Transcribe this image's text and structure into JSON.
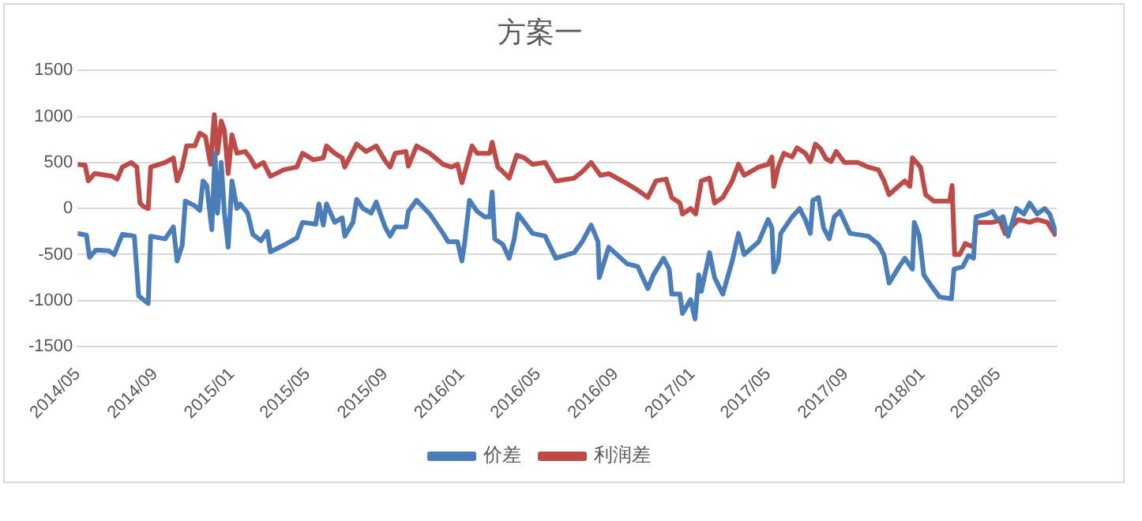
{
  "chart_data": {
    "type": "line",
    "title": "方案一",
    "legend": "bottom",
    "grid": "y",
    "marker": "none",
    "line_style": "solid",
    "xlim": [
      "2014-05-01",
      "2018-08-02"
    ],
    "xticks": [
      {
        "value": "2014-05-01",
        "label": "2014/05"
      },
      {
        "value": "2014-09-01",
        "label": "2014/09"
      },
      {
        "value": "2015-01-01",
        "label": "2015/01"
      },
      {
        "value": "2015-05-01",
        "label": "2015/05"
      },
      {
        "value": "2015-09-01",
        "label": "2015/09"
      },
      {
        "value": "2016-01-01",
        "label": "2016/01"
      },
      {
        "value": "2016-05-01",
        "label": "2016/05"
      },
      {
        "value": "2016-09-01",
        "label": "2016/09"
      },
      {
        "value": "2017-01-01",
        "label": "2017/01"
      },
      {
        "value": "2017-05-01",
        "label": "2017/05"
      },
      {
        "value": "2017-09-01",
        "label": "2017/09"
      },
      {
        "value": "2018-01-01",
        "label": "2018/01"
      },
      {
        "value": "2018-05-01",
        "label": "2018/05"
      }
    ],
    "ylim": [
      -1500,
      1500
    ],
    "yticks": [
      -1500,
      -1000,
      -500,
      0,
      500,
      1000,
      1500
    ],
    "series": [
      {
        "name": "价差",
        "color": "#4a7ebb",
        "x": [
          "2014-05-01",
          "2014-05-15",
          "2014-05-20",
          "2014-05-30",
          "2014-06-20",
          "2014-06-28",
          "2014-07-11",
          "2014-07-30",
          "2014-08-06",
          "2014-08-21",
          "2014-08-25",
          "2014-09-17",
          "2014-09-30",
          "2014-10-06",
          "2014-10-14",
          "2014-10-19",
          "2014-11-03",
          "2014-11-11",
          "2014-11-16",
          "2014-11-22",
          "2014-11-30",
          "2014-12-05",
          "2014-12-09",
          "2014-12-15",
          "2014-12-20",
          "2014-12-26",
          "2015-01-01",
          "2015-01-09",
          "2015-01-14",
          "2015-01-26",
          "2015-02-03",
          "2015-02-16",
          "2015-02-26",
          "2015-03-03",
          "2015-03-24",
          "2015-04-14",
          "2015-04-23",
          "2015-05-14",
          "2015-05-19",
          "2015-05-26",
          "2015-05-31",
          "2015-06-13",
          "2015-06-25",
          "2015-06-29",
          "2015-07-12",
          "2015-07-18",
          "2015-07-28",
          "2015-08-10",
          "2015-08-18",
          "2015-09-01",
          "2015-09-09",
          "2015-09-17",
          "2015-10-04",
          "2015-10-08",
          "2015-10-21",
          "2015-11-11",
          "2015-12-02",
          "2015-12-10",
          "2015-12-25",
          "2016-01-01",
          "2016-01-05",
          "2016-01-13",
          "2016-01-25",
          "2016-02-06",
          "2016-02-14",
          "2016-02-18",
          "2016-02-22",
          "2016-03-06",
          "2016-03-16",
          "2016-03-24",
          "2016-03-30",
          "2016-04-09",
          "2016-04-22",
          "2016-05-12",
          "2016-05-29",
          "2016-06-27",
          "2016-07-10",
          "2016-07-24",
          "2016-08-04",
          "2016-08-06",
          "2016-08-21",
          "2016-09-19",
          "2016-10-06",
          "2016-10-14",
          "2016-10-22",
          "2016-10-31",
          "2016-11-16",
          "2016-11-25",
          "2016-11-29",
          "2016-12-12",
          "2016-12-16",
          "2016-12-29",
          "2017-01-05",
          "2017-01-11",
          "2017-01-15",
          "2017-01-28",
          "2017-02-05",
          "2017-02-18",
          "2017-03-05",
          "2017-03-15",
          "2017-03-24",
          "2017-04-16",
          "2017-05-01",
          "2017-05-07",
          "2017-05-10",
          "2017-05-17",
          "2017-05-21",
          "2017-06-08",
          "2017-06-20",
          "2017-06-29",
          "2017-07-07",
          "2017-07-11",
          "2017-07-20",
          "2017-07-28",
          "2017-08-06",
          "2017-08-14",
          "2017-08-23",
          "2017-09-08",
          "2017-10-07",
          "2017-10-23",
          "2017-11-01",
          "2017-11-09",
          "2017-11-25",
          "2017-12-04",
          "2017-12-16",
          "2017-12-19",
          "2017-12-27",
          "2018-01-03",
          "2018-01-15",
          "2018-01-28",
          "2018-02-16",
          "2018-02-20",
          "2018-03-06",
          "2018-03-15",
          "2018-03-23",
          "2018-03-27",
          "2018-04-13",
          "2018-04-22",
          "2018-04-30",
          "2018-05-09",
          "2018-05-17",
          "2018-05-30",
          "2018-06-11",
          "2018-06-20",
          "2018-07-02",
          "2018-07-14",
          "2018-07-22",
          "2018-08-01"
        ],
        "values": [
          -270,
          -290,
          -530,
          -450,
          -460,
          -500,
          -280,
          -300,
          -950,
          -1030,
          -300,
          -330,
          -200,
          -570,
          -400,
          80,
          30,
          -20,
          300,
          250,
          -230,
          600,
          -50,
          500,
          -50,
          -420,
          300,
          0,
          50,
          -50,
          -280,
          -350,
          -250,
          -470,
          -400,
          -320,
          -150,
          -170,
          50,
          -180,
          50,
          -150,
          -100,
          -300,
          -150,
          100,
          0,
          -50,
          70,
          -200,
          -300,
          -200,
          -200,
          -30,
          90,
          -60,
          -270,
          -360,
          -360,
          -570,
          -390,
          90,
          -30,
          -90,
          -90,
          180,
          -330,
          -390,
          -540,
          -330,
          -60,
          -150,
          -270,
          -300,
          -540,
          -480,
          -360,
          -180,
          -360,
          -750,
          -420,
          -600,
          -630,
          -750,
          -870,
          -720,
          -540,
          -660,
          -930,
          -930,
          -1140,
          -990,
          -1200,
          -720,
          -900,
          -480,
          -750,
          -930,
          -570,
          -270,
          -500,
          -360,
          -120,
          -210,
          -690,
          -570,
          -270,
          -90,
          0,
          -120,
          -270,
          90,
          120,
          -210,
          -330,
          -90,
          -30,
          -270,
          -300,
          -390,
          -510,
          -810,
          -630,
          -540,
          -660,
          -150,
          -300,
          -720,
          -840,
          -960,
          -980,
          -660,
          -630,
          -510,
          -540,
          -90,
          -60,
          -30,
          -120,
          -90,
          -300,
          0,
          -60,
          60,
          -60,
          0,
          -60,
          -270
        ]
      },
      {
        "name": "利润差",
        "color": "#be4b48",
        "x": [
          "2014-05-01",
          "2014-05-13",
          "2014-05-18",
          "2014-05-28",
          "2014-06-25",
          "2014-07-03",
          "2014-07-11",
          "2014-07-25",
          "2014-08-03",
          "2014-08-08",
          "2014-08-14",
          "2014-08-21",
          "2014-08-25",
          "2014-09-17",
          "2014-09-30",
          "2014-10-06",
          "2014-10-14",
          "2014-10-21",
          "2014-11-03",
          "2014-11-11",
          "2014-11-20",
          "2014-11-28",
          "2014-12-04",
          "2014-12-09",
          "2014-12-15",
          "2014-12-20",
          "2014-12-26",
          "2015-01-01",
          "2015-01-09",
          "2015-01-22",
          "2015-01-30",
          "2015-02-07",
          "2015-02-20",
          "2015-03-03",
          "2015-03-24",
          "2015-04-14",
          "2015-04-23",
          "2015-05-10",
          "2015-05-26",
          "2015-05-31",
          "2015-06-13",
          "2015-06-25",
          "2015-06-29",
          "2015-07-18",
          "2015-08-02",
          "2015-08-18",
          "2015-09-01",
          "2015-09-09",
          "2015-09-17",
          "2015-10-04",
          "2015-10-08",
          "2015-10-21",
          "2015-11-11",
          "2015-12-02",
          "2015-12-15",
          "2015-12-25",
          "2016-01-01",
          "2016-01-09",
          "2016-01-17",
          "2016-01-25",
          "2016-02-14",
          "2016-02-18",
          "2016-02-27",
          "2016-03-06",
          "2016-03-16",
          "2016-03-28",
          "2016-04-09",
          "2016-04-22",
          "2016-05-12",
          "2016-05-29",
          "2016-06-27",
          "2016-07-10",
          "2016-07-24",
          "2016-08-08",
          "2016-08-21",
          "2016-09-19",
          "2016-10-06",
          "2016-10-22",
          "2016-11-04",
          "2016-11-20",
          "2016-11-29",
          "2016-12-12",
          "2016-12-16",
          "2016-12-29",
          "2017-01-06",
          "2017-01-15",
          "2017-01-28",
          "2017-02-05",
          "2017-02-18",
          "2017-03-05",
          "2017-03-15",
          "2017-03-24",
          "2017-04-16",
          "2017-05-01",
          "2017-05-07",
          "2017-05-10",
          "2017-05-17",
          "2017-05-26",
          "2017-06-08",
          "2017-06-16",
          "2017-06-29",
          "2017-07-07",
          "2017-07-15",
          "2017-07-23",
          "2017-08-01",
          "2017-08-09",
          "2017-08-17",
          "2017-08-30",
          "2017-09-20",
          "2017-10-07",
          "2017-10-23",
          "2017-11-01",
          "2017-11-09",
          "2017-11-25",
          "2017-12-04",
          "2017-12-12",
          "2017-12-16",
          "2017-12-29",
          "2018-01-06",
          "2018-01-19",
          "2018-02-13",
          "2018-02-17",
          "2018-02-21",
          "2018-03-01",
          "2018-03-10",
          "2018-03-23",
          "2018-03-27",
          "2018-04-22",
          "2018-05-04",
          "2018-05-12",
          "2018-05-25",
          "2018-06-02",
          "2018-06-20",
          "2018-07-02",
          "2018-07-18",
          "2018-08-01"
        ],
        "values": [
          480,
          470,
          300,
          380,
          350,
          320,
          450,
          500,
          450,
          60,
          20,
          0,
          450,
          500,
          550,
          300,
          450,
          680,
          680,
          820,
          780,
          480,
          1020,
          600,
          950,
          850,
          380,
          800,
          600,
          620,
          550,
          450,
          500,
          350,
          420,
          450,
          600,
          530,
          550,
          680,
          600,
          550,
          450,
          700,
          620,
          680,
          520,
          450,
          600,
          620,
          460,
          680,
          600,
          480,
          450,
          480,
          280,
          480,
          680,
          600,
          600,
          720,
          450,
          400,
          330,
          580,
          550,
          480,
          500,
          300,
          330,
          400,
          500,
          360,
          380,
          270,
          200,
          120,
          300,
          320,
          120,
          60,
          -60,
          0,
          -60,
          300,
          330,
          60,
          120,
          300,
          480,
          360,
          450,
          480,
          560,
          240,
          450,
          600,
          560,
          660,
          600,
          510,
          700,
          650,
          540,
          510,
          620,
          500,
          500,
          450,
          420,
          300,
          150,
          250,
          300,
          240,
          550,
          450,
          150,
          80,
          80,
          250,
          -500,
          -500,
          -380,
          -420,
          -150,
          -150,
          -130,
          -270,
          -180,
          -120,
          -150,
          -120,
          -150,
          -300
        ]
      }
    ]
  }
}
